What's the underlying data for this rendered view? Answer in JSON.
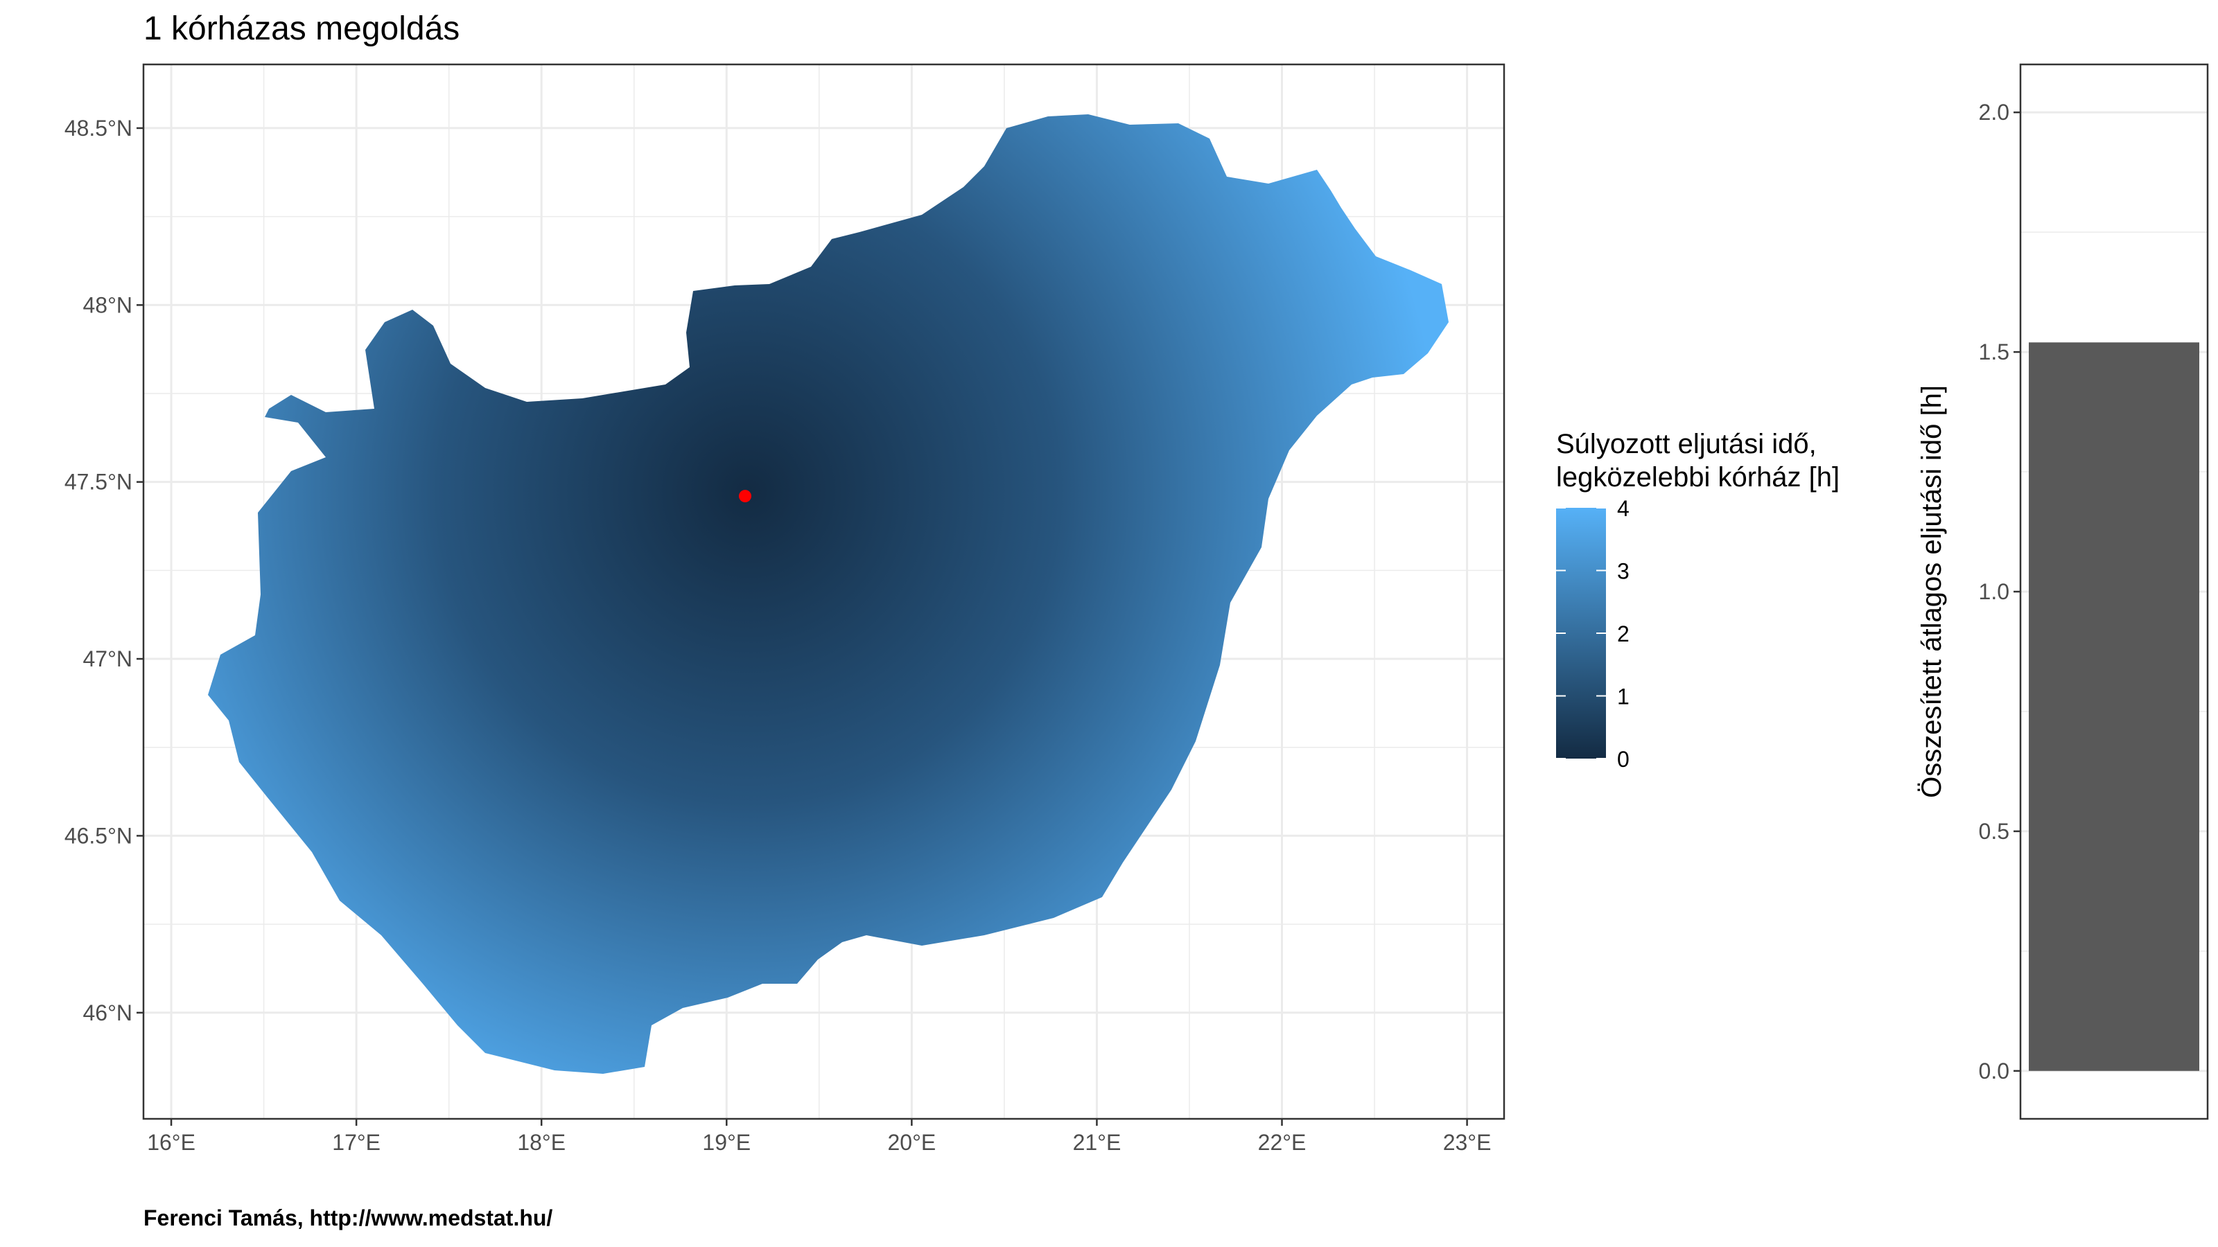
{
  "title": "1 kórházas megoldás",
  "caption": "Ferenci Tamás, http://www.medstat.hu/",
  "colors": {
    "low": "#132b43",
    "high": "#56b1f7",
    "hospital_point": "#ff0000",
    "bar_fill": "#595959",
    "grid": "#ebebeb",
    "panel_border": "#333333"
  },
  "legend": {
    "title_line1": "Súlyozott eljutási idő,",
    "title_line2": "legközelebbi kórház [h]",
    "ticks": [
      "4",
      "3",
      "2",
      "1",
      "0"
    ]
  },
  "map": {
    "x_ticks": [
      "16°E",
      "17°E",
      "18°E",
      "19°E",
      "20°E",
      "21°E",
      "22°E",
      "23°E"
    ],
    "y_ticks": [
      "48.5°N",
      "48°N",
      "47.5°N",
      "47°N",
      "46.5°N",
      "46°N"
    ],
    "hospital": {
      "lon": 19.1,
      "lat": 47.46
    }
  },
  "chart_data": [
    {
      "type": "heatmap",
      "title": "1 kórházas megoldás",
      "xlim": [
        15.85,
        23.2
      ],
      "ylim": [
        45.7,
        48.68
      ],
      "x_ticks": [
        16,
        17,
        18,
        19,
        20,
        21,
        22,
        23
      ],
      "y_ticks": [
        46,
        46.5,
        47,
        47.5,
        48,
        48.5
      ],
      "legend_title": "Súlyozott eljutási idő, legközelebbi kórház [h]",
      "color_scale": {
        "min": 0,
        "max": 4,
        "ticks": [
          0,
          1,
          2,
          3,
          4
        ]
      },
      "points": [
        {
          "lon": 19.1,
          "lat": 47.46
        }
      ],
      "grid": true,
      "legend_position": "right"
    },
    {
      "type": "bar",
      "categories": [
        ""
      ],
      "values": [
        1.52
      ],
      "ylabel": "Összesített átlagos eljutási idő [h]",
      "ylim": [
        -0.1,
        2.1
      ],
      "y_ticks": [
        "0.0",
        "0.5",
        "1.0",
        "1.5",
        "2.0"
      ],
      "grid": true
    }
  ]
}
